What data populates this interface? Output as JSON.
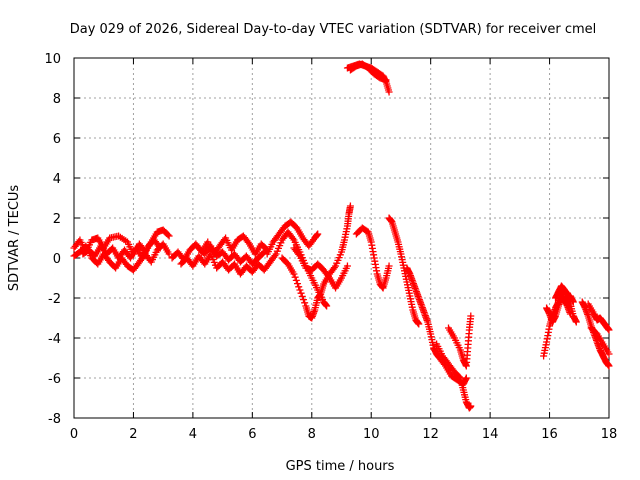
{
  "chart_data": {
    "type": "scatter",
    "title": "Day 029 of 2026, Sidereal Day-to-day VTEC variation (SDTVAR) for receiver cmel",
    "xlabel": "GPS time / hours",
    "ylabel": "SDTVAR / TECUs",
    "xlim": [
      0,
      18
    ],
    "ylim": [
      -8,
      10
    ],
    "xticks": [
      0,
      2,
      4,
      6,
      8,
      10,
      12,
      14,
      16,
      18
    ],
    "yticks": [
      -8,
      -6,
      -4,
      -2,
      0,
      2,
      4,
      6,
      8,
      10
    ],
    "grid": true,
    "marker": "+",
    "series": [
      {
        "name": "SDTVAR",
        "color": "#ff0000",
        "tracks": [
          [
            [
              0.0,
              0.5
            ],
            [
              0.2,
              0.9
            ],
            [
              0.4,
              0.3
            ],
            [
              0.6,
              0.9
            ],
            [
              0.8,
              1.0
            ],
            [
              1.0,
              0.5
            ],
            [
              1.2,
              1.0
            ],
            [
              1.5,
              1.1
            ],
            [
              1.8,
              0.8
            ],
            [
              2.0,
              0.2
            ],
            [
              2.2,
              0.7
            ],
            [
              2.4,
              0.3
            ],
            [
              2.6,
              0.8
            ],
            [
              2.8,
              1.3
            ],
            [
              3.0,
              1.4
            ],
            [
              3.2,
              1.1
            ]
          ],
          [
            [
              0.0,
              0.1
            ],
            [
              0.2,
              0.3
            ],
            [
              0.4,
              0.6
            ],
            [
              0.6,
              0.0
            ],
            [
              0.8,
              -0.3
            ],
            [
              1.0,
              0.2
            ],
            [
              1.2,
              -0.2
            ],
            [
              1.4,
              -0.5
            ],
            [
              1.6,
              0.0
            ],
            [
              1.8,
              -0.4
            ],
            [
              2.0,
              -0.6
            ],
            [
              2.2,
              -0.2
            ],
            [
              2.4,
              0.2
            ],
            [
              2.6,
              -0.2
            ],
            [
              2.8,
              0.4
            ],
            [
              3.0,
              0.7
            ],
            [
              3.2,
              0.2
            ]
          ],
          [
            [
              0.3,
              0.2
            ],
            [
              0.5,
              0.4
            ],
            [
              0.7,
              0.1
            ],
            [
              0.9,
              0.6
            ],
            [
              1.1,
              0.2
            ],
            [
              1.3,
              0.5
            ],
            [
              1.5,
              0.0
            ],
            [
              1.7,
              0.4
            ],
            [
              1.9,
              0.0
            ],
            [
              2.1,
              0.5
            ],
            [
              2.3,
              0.0
            ],
            [
              2.5,
              0.6
            ],
            [
              2.7,
              0.9
            ],
            [
              2.9,
              0.5
            ]
          ],
          [
            [
              3.3,
              0.0
            ],
            [
              3.5,
              0.3
            ],
            [
              3.7,
              -0.1
            ],
            [
              3.9,
              0.4
            ],
            [
              4.1,
              0.7
            ],
            [
              4.3,
              0.3
            ],
            [
              4.5,
              0.8
            ],
            [
              4.7,
              0.2
            ],
            [
              4.9,
              0.6
            ],
            [
              5.1,
              1.0
            ],
            [
              5.3,
              0.4
            ],
            [
              5.5,
              0.9
            ],
            [
              5.7,
              1.1
            ],
            [
              5.9,
              0.7
            ],
            [
              6.1,
              0.2
            ],
            [
              6.3,
              0.7
            ],
            [
              6.5,
              0.4
            ]
          ],
          [
            [
              3.6,
              -0.3
            ],
            [
              3.8,
              0.0
            ],
            [
              4.0,
              -0.4
            ],
            [
              4.2,
              0.1
            ],
            [
              4.4,
              -0.3
            ],
            [
              4.6,
              0.2
            ],
            [
              4.8,
              -0.5
            ],
            [
              5.0,
              -0.2
            ],
            [
              5.2,
              -0.6
            ],
            [
              5.4,
              -0.3
            ],
            [
              5.6,
              -0.8
            ],
            [
              5.8,
              -0.4
            ],
            [
              6.0,
              -0.7
            ],
            [
              6.2,
              -0.3
            ],
            [
              6.4,
              -0.6
            ],
            [
              6.6,
              -0.2
            ]
          ],
          [
            [
              4.2,
              0.5
            ],
            [
              4.4,
              0.2
            ],
            [
              4.6,
              0.6
            ],
            [
              4.8,
              0.1
            ],
            [
              5.0,
              0.3
            ],
            [
              5.2,
              -0.1
            ],
            [
              5.4,
              0.2
            ],
            [
              5.6,
              -0.2
            ],
            [
              5.8,
              0.1
            ],
            [
              6.0,
              -0.3
            ],
            [
              6.2,
              0.0
            ],
            [
              6.4,
              0.3
            ]
          ],
          [
            [
              6.5,
              0.2
            ],
            [
              6.7,
              0.8
            ],
            [
              6.9,
              1.2
            ],
            [
              7.1,
              1.6
            ],
            [
              7.3,
              1.8
            ],
            [
              7.5,
              1.5
            ],
            [
              7.7,
              1.0
            ],
            [
              7.9,
              0.6
            ],
            [
              8.1,
              1.0
            ],
            [
              8.2,
              1.2
            ]
          ],
          [
            [
              6.6,
              -0.2
            ],
            [
              6.8,
              0.2
            ],
            [
              7.0,
              0.9
            ],
            [
              7.2,
              1.3
            ],
            [
              7.4,
              0.9
            ],
            [
              7.6,
              0.3
            ],
            [
              7.8,
              -0.4
            ],
            [
              8.0,
              -1.0
            ],
            [
              8.2,
              -1.6
            ],
            [
              8.4,
              -2.2
            ],
            [
              8.5,
              -2.4
            ]
          ],
          [
            [
              7.0,
              0.0
            ],
            [
              7.2,
              -0.3
            ],
            [
              7.4,
              -0.8
            ],
            [
              7.6,
              -1.6
            ],
            [
              7.8,
              -2.4
            ],
            [
              7.9,
              -2.9
            ],
            [
              8.0,
              -3.0
            ],
            [
              8.1,
              -2.6
            ],
            [
              8.2,
              -2.0
            ],
            [
              8.3,
              -1.8
            ],
            [
              8.4,
              -1.3
            ],
            [
              8.6,
              -0.8
            ],
            [
              8.8,
              -0.4
            ],
            [
              9.0,
              0.3
            ],
            [
              9.1,
              0.9
            ],
            [
              9.2,
              1.6
            ],
            [
              9.25,
              2.2
            ],
            [
              9.3,
              2.6
            ]
          ],
          [
            [
              7.4,
              0.5
            ],
            [
              7.6,
              0.1
            ],
            [
              7.8,
              -0.5
            ],
            [
              8.0,
              -0.6
            ],
            [
              8.2,
              -0.3
            ],
            [
              8.4,
              -0.6
            ],
            [
              8.6,
              -1.0
            ],
            [
              8.8,
              -1.5
            ],
            [
              9.0,
              -1.0
            ],
            [
              9.2,
              -0.4
            ]
          ],
          [
            [
              9.5,
              1.2
            ],
            [
              9.7,
              1.5
            ],
            [
              9.9,
              1.3
            ],
            [
              10.0,
              0.8
            ],
            [
              10.1,
              0.0
            ],
            [
              10.2,
              -0.8
            ],
            [
              10.3,
              -1.3
            ],
            [
              10.4,
              -1.5
            ],
            [
              10.5,
              -1.0
            ],
            [
              10.6,
              -0.4
            ]
          ],
          [
            [
              10.6,
              2.0
            ],
            [
              10.7,
              1.8
            ],
            [
              10.8,
              1.3
            ],
            [
              10.9,
              0.8
            ],
            [
              11.0,
              0.2
            ],
            [
              11.1,
              -0.5
            ],
            [
              11.2,
              -1.2
            ],
            [
              11.3,
              -1.9
            ],
            [
              11.4,
              -2.6
            ],
            [
              11.5,
              -3.1
            ],
            [
              11.6,
              -3.3
            ]
          ],
          [
            [
              11.2,
              -0.5
            ],
            [
              11.3,
              -0.8
            ],
            [
              11.4,
              -1.2
            ],
            [
              11.5,
              -1.6
            ],
            [
              11.6,
              -2.0
            ],
            [
              11.7,
              -2.4
            ],
            [
              11.8,
              -2.8
            ],
            [
              11.9,
              -3.2
            ],
            [
              12.0,
              -3.8
            ],
            [
              12.1,
              -4.5
            ],
            [
              12.2,
              -4.8
            ],
            [
              12.3,
              -5.0
            ],
            [
              12.5,
              -5.4
            ],
            [
              12.7,
              -5.9
            ],
            [
              12.9,
              -6.1
            ],
            [
              13.1,
              -6.3
            ],
            [
              13.2,
              -6.0
            ]
          ],
          [
            [
              12.2,
              -4.3
            ],
            [
              12.4,
              -4.9
            ],
            [
              12.6,
              -5.3
            ],
            [
              12.8,
              -5.7
            ],
            [
              13.0,
              -6.0
            ],
            [
              13.1,
              -6.6
            ],
            [
              13.2,
              -7.2
            ],
            [
              13.3,
              -7.5
            ],
            [
              13.35,
              -7.4
            ]
          ],
          [
            [
              12.6,
              -3.5
            ],
            [
              12.8,
              -4.0
            ],
            [
              13.0,
              -4.6
            ],
            [
              13.1,
              -5.1
            ],
            [
              13.2,
              -5.4
            ],
            [
              13.25,
              -4.5
            ],
            [
              13.3,
              -3.6
            ],
            [
              13.35,
              -2.9
            ]
          ],
          [
            [
              9.2,
              9.5
            ],
            [
              9.4,
              9.6
            ],
            [
              9.6,
              9.7
            ],
            [
              9.8,
              9.6
            ],
            [
              10.0,
              9.5
            ],
            [
              10.2,
              9.3
            ],
            [
              10.4,
              9.1
            ],
            [
              10.5,
              8.8
            ],
            [
              10.6,
              8.3
            ]
          ],
          [
            [
              9.3,
              9.4
            ],
            [
              9.5,
              9.6
            ],
            [
              9.7,
              9.7
            ],
            [
              9.9,
              9.5
            ],
            [
              10.1,
              9.2
            ],
            [
              10.3,
              9.0
            ],
            [
              10.5,
              8.9
            ]
          ],
          [
            [
              15.8,
              -4.9
            ],
            [
              15.9,
              -4.2
            ],
            [
              16.0,
              -3.4
            ],
            [
              16.1,
              -2.9
            ],
            [
              16.2,
              -2.5
            ],
            [
              16.3,
              -2.2
            ],
            [
              16.4,
              -1.8
            ],
            [
              16.5,
              -1.6
            ],
            [
              16.6,
              -1.8
            ],
            [
              16.7,
              -2.3
            ],
            [
              16.8,
              -2.9
            ],
            [
              16.9,
              -3.2
            ]
          ],
          [
            [
              15.9,
              -2.5
            ],
            [
              16.0,
              -2.8
            ],
            [
              16.1,
              -3.2
            ],
            [
              16.2,
              -2.9
            ],
            [
              16.3,
              -2.4
            ],
            [
              16.4,
              -2.0
            ],
            [
              16.5,
              -2.1
            ],
            [
              16.6,
              -2.4
            ],
            [
              16.7,
              -2.8
            ]
          ],
          [
            [
              16.2,
              -2.0
            ],
            [
              16.3,
              -1.7
            ],
            [
              16.4,
              -1.4
            ],
            [
              16.5,
              -1.6
            ],
            [
              16.6,
              -2.0
            ],
            [
              16.7,
              -1.9
            ],
            [
              16.8,
              -2.2
            ]
          ],
          [
            [
              17.1,
              -2.2
            ],
            [
              17.2,
              -2.5
            ],
            [
              17.3,
              -2.9
            ],
            [
              17.4,
              -3.4
            ],
            [
              17.5,
              -3.8
            ],
            [
              17.6,
              -4.2
            ],
            [
              17.7,
              -4.6
            ],
            [
              17.8,
              -4.9
            ],
            [
              17.9,
              -5.2
            ],
            [
              18.0,
              -5.4
            ]
          ],
          [
            [
              17.3,
              -2.3
            ],
            [
              17.5,
              -2.8
            ],
            [
              17.6,
              -3.1
            ],
            [
              17.7,
              -3.0
            ],
            [
              17.8,
              -3.2
            ],
            [
              17.9,
              -3.4
            ],
            [
              18.0,
              -3.6
            ]
          ],
          [
            [
              17.4,
              -3.5
            ],
            [
              17.6,
              -3.8
            ],
            [
              17.8,
              -4.3
            ],
            [
              18.0,
              -4.8
            ]
          ]
        ]
      }
    ]
  }
}
